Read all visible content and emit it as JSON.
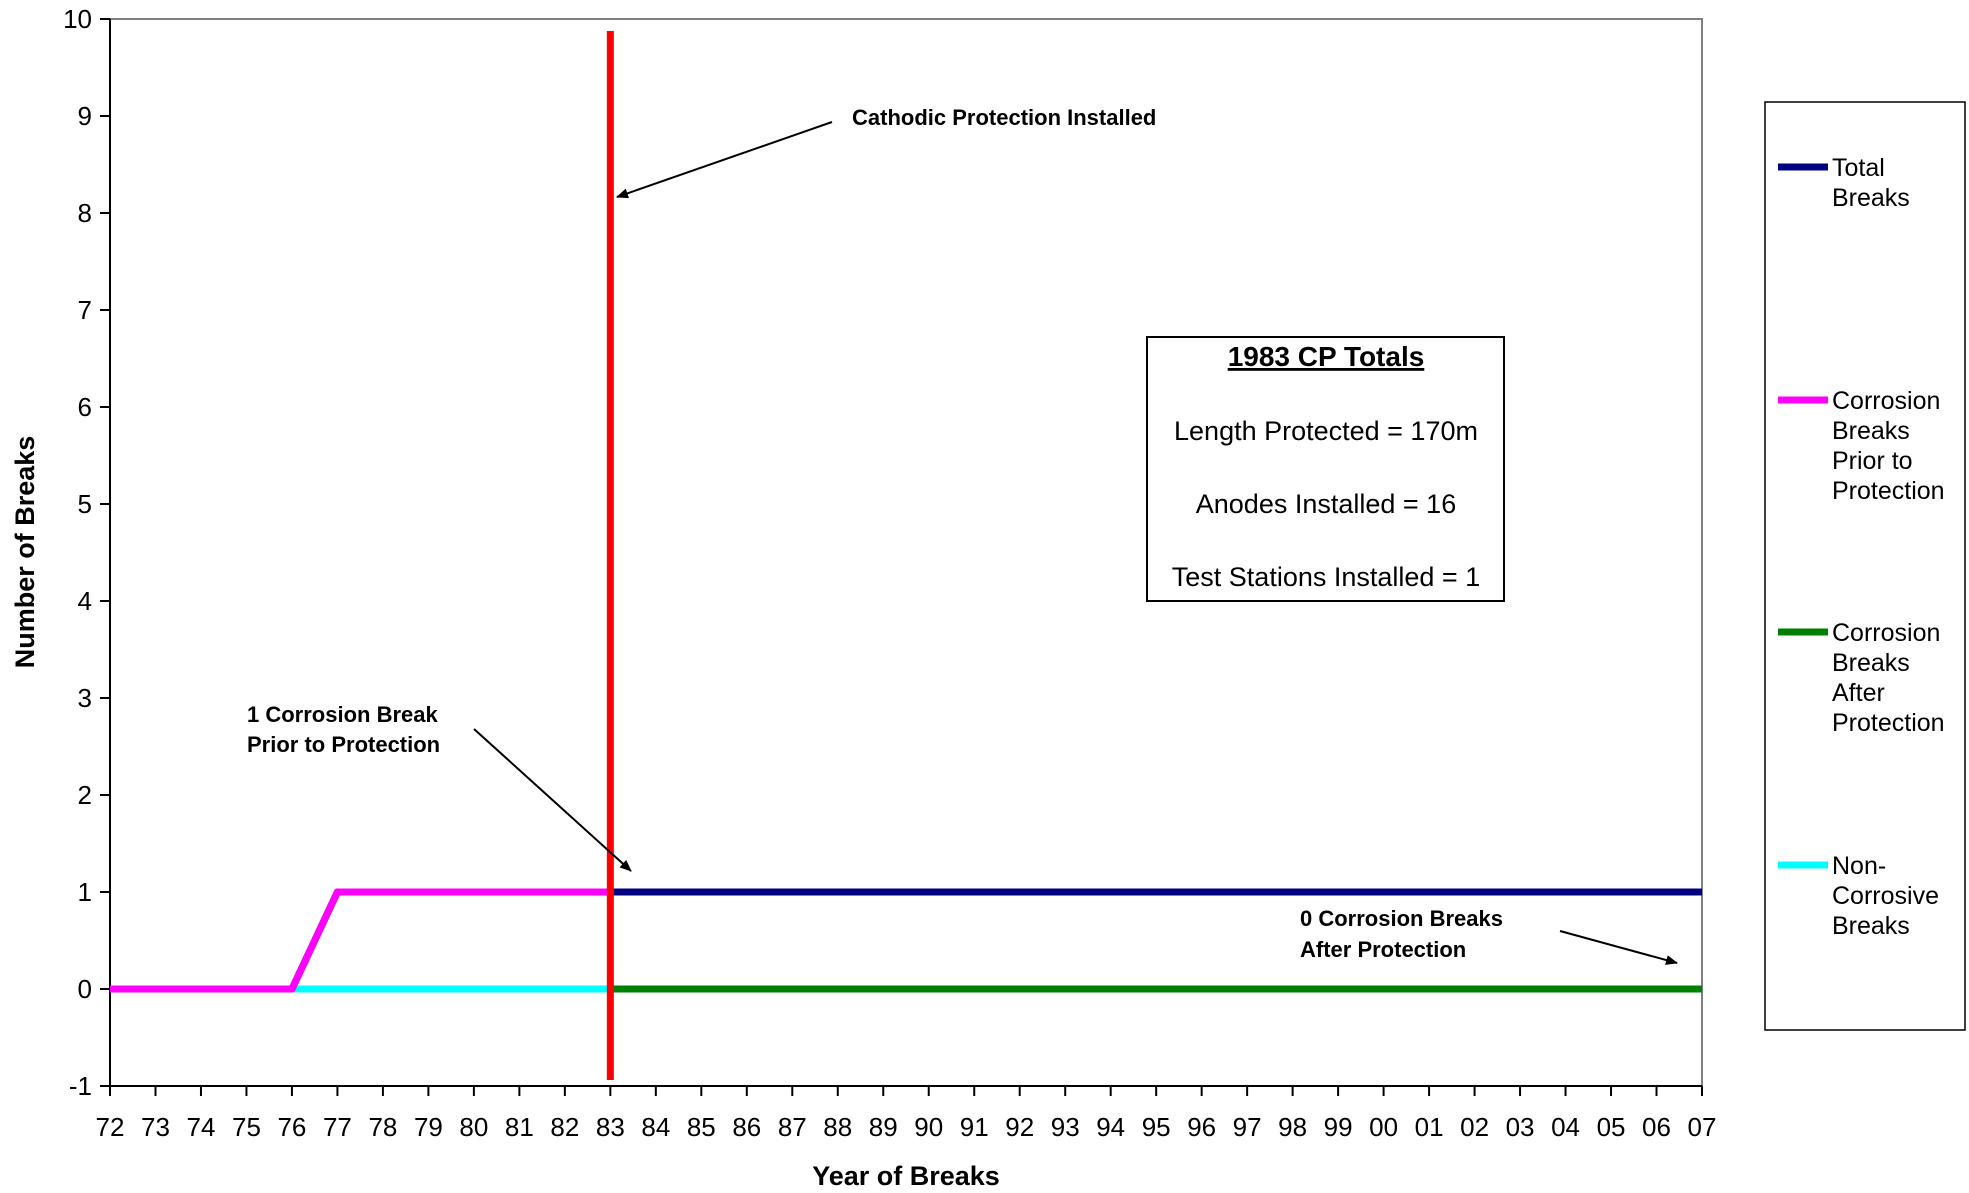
{
  "chart_data": {
    "type": "line",
    "xlabel": "Year of Breaks",
    "ylabel": "Number of Breaks",
    "ylim": [
      -1,
      10
    ],
    "yticks": [
      "-1",
      "0",
      "1",
      "2",
      "3",
      "4",
      "5",
      "6",
      "7",
      "8",
      "9",
      "10"
    ],
    "categories": [
      "72",
      "73",
      "74",
      "75",
      "76",
      "77",
      "78",
      "79",
      "80",
      "81",
      "82",
      "83",
      "84",
      "85",
      "86",
      "87",
      "88",
      "89",
      "90",
      "91",
      "92",
      "93",
      "94",
      "95",
      "96",
      "97",
      "98",
      "99",
      "00",
      "01",
      "02",
      "03",
      "04",
      "05",
      "06",
      "07"
    ],
    "series": [
      {
        "name": "Total Breaks",
        "color": "#000080",
        "values": [
          0,
          0,
          0,
          0,
          0,
          1,
          1,
          1,
          1,
          1,
          1,
          1,
          1,
          1,
          1,
          1,
          1,
          1,
          1,
          1,
          1,
          1,
          1,
          1,
          1,
          1,
          1,
          1,
          1,
          1,
          1,
          1,
          1,
          1,
          1,
          1
        ]
      },
      {
        "name": "Corrosion Breaks Prior to Protection",
        "color": "#ff00ff",
        "values": [
          0,
          0,
          0,
          0,
          0,
          1,
          1,
          1,
          1,
          1,
          1,
          1,
          null,
          null,
          null,
          null,
          null,
          null,
          null,
          null,
          null,
          null,
          null,
          null,
          null,
          null,
          null,
          null,
          null,
          null,
          null,
          null,
          null,
          null,
          null,
          null
        ]
      },
      {
        "name": "Corrosion Breaks After Protection",
        "color": "#008000",
        "values": [
          null,
          null,
          null,
          null,
          null,
          null,
          null,
          null,
          null,
          null,
          null,
          0,
          0,
          0,
          0,
          0,
          0,
          0,
          0,
          0,
          0,
          0,
          0,
          0,
          0,
          0,
          0,
          0,
          0,
          0,
          0,
          0,
          0,
          0,
          0,
          0
        ]
      },
      {
        "name": "Non-Corrosive Breaks",
        "color": "#00ffff",
        "values": [
          0,
          0,
          0,
          0,
          0,
          0,
          0,
          0,
          0,
          0,
          0,
          0,
          0,
          0,
          0,
          0,
          0,
          0,
          0,
          0,
          0,
          0,
          0,
          0,
          0,
          0,
          0,
          0,
          0,
          0,
          0,
          0,
          0,
          0,
          0,
          0
        ]
      }
    ],
    "cp_line": {
      "year_category": "83",
      "color": "#ff0000"
    },
    "legend": {
      "placement": "right",
      "entries": [
        [
          "Total",
          "Breaks"
        ],
        [
          "Corrosion",
          "Breaks",
          "Prior to",
          "Protection"
        ],
        [
          "Corrosion",
          "Breaks",
          "After",
          "Protection"
        ],
        [
          "Non-",
          "Corrosive",
          "Breaks"
        ]
      ]
    },
    "annotations": {
      "cp_installed": "Cathodic Protection Installed",
      "prior_line1": "1 Corrosion Break",
      "prior_line2": "Prior to Protection",
      "after_line1": "0 Corrosion Breaks",
      "after_line2": "After Protection"
    },
    "infobox": {
      "title": "1983 CP Totals",
      "lines": [
        "Length Protected = 170m",
        "Anodes Installed = 16",
        "Test Stations Installed = 1"
      ]
    }
  }
}
